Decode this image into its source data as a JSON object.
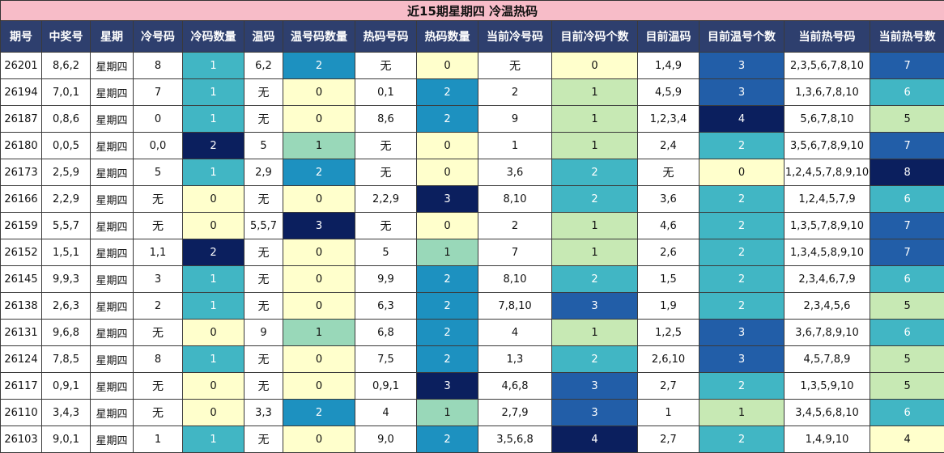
{
  "title": "近15期星期四 冷温热码",
  "headers": [
    "期号",
    "中奖号",
    "星期",
    "冷号码",
    "冷码数量",
    "温码",
    "温号码数量",
    "热码号码",
    "热码数量",
    "当前冷号码",
    "目前冷码个数",
    "目前温码",
    "目前温号个数",
    "当前热号码",
    "当前热号数"
  ],
  "colors": {
    "white": "#ffffff",
    "header_bg": "#2e3f6e",
    "title_bg": "#f7bcc8",
    "count_scale": {
      "0": "#ffffcc",
      "1_light": "#c7e9b4",
      "1_teal": "#41b6c4",
      "1_mint": "#99d8b9",
      "2_teal": "#41b6c4",
      "2_blue": "#1d91c0",
      "3": "#225ea8",
      "4": "#0b1f5e"
    }
  },
  "rows": [
    {
      "cells": [
        "26201",
        "8,6,2",
        "星期四",
        "8",
        "1",
        "6,2",
        "2",
        "无",
        "0",
        "无",
        "0",
        "1,4,9",
        "3",
        "2,3,5,6,7,8,10",
        "7"
      ],
      "fills": [
        "#ffffff",
        "#ffffff",
        "#ffffff",
        "#ffffff",
        "#41b6c4",
        "#ffffff",
        "#1d91c0",
        "#ffffff",
        "#ffffcc",
        "#ffffff",
        "#ffffcc",
        "#ffffff",
        "#225ea8",
        "#ffffff",
        "#225ea8"
      ]
    },
    {
      "cells": [
        "26194",
        "7,0,1",
        "星期四",
        "7",
        "1",
        "无",
        "0",
        "0,1",
        "2",
        "2",
        "1",
        "4,5,9",
        "3",
        "1,3,6,7,8,10",
        "6"
      ],
      "fills": [
        "#ffffff",
        "#ffffff",
        "#ffffff",
        "#ffffff",
        "#41b6c4",
        "#ffffff",
        "#ffffcc",
        "#ffffff",
        "#1d91c0",
        "#ffffff",
        "#c7e9b4",
        "#ffffff",
        "#225ea8",
        "#ffffff",
        "#41b6c4"
      ]
    },
    {
      "cells": [
        "26187",
        "0,8,6",
        "星期四",
        "0",
        "1",
        "无",
        "0",
        "8,6",
        "2",
        "9",
        "1",
        "1,2,3,4",
        "4",
        "5,6,7,8,10",
        "5"
      ],
      "fills": [
        "#ffffff",
        "#ffffff",
        "#ffffff",
        "#ffffff",
        "#41b6c4",
        "#ffffff",
        "#ffffcc",
        "#ffffff",
        "#1d91c0",
        "#ffffff",
        "#c7e9b4",
        "#ffffff",
        "#0b1f5e",
        "#ffffff",
        "#c7e9b4"
      ]
    },
    {
      "cells": [
        "26180",
        "0,0,5",
        "星期四",
        "0,0",
        "2",
        "5",
        "1",
        "无",
        "0",
        "1",
        "1",
        "2,4",
        "2",
        "3,5,6,7,8,9,10",
        "7"
      ],
      "fills": [
        "#ffffff",
        "#ffffff",
        "#ffffff",
        "#ffffff",
        "#0b1f5e",
        "#ffffff",
        "#99d8b9",
        "#ffffff",
        "#ffffcc",
        "#ffffff",
        "#c7e9b4",
        "#ffffff",
        "#41b6c4",
        "#ffffff",
        "#225ea8"
      ]
    },
    {
      "cells": [
        "26173",
        "2,5,9",
        "星期四",
        "5",
        "1",
        "2,9",
        "2",
        "无",
        "0",
        "3,6",
        "2",
        "无",
        "0",
        "1,2,4,5,7,8,9,10",
        "8"
      ],
      "fills": [
        "#ffffff",
        "#ffffff",
        "#ffffff",
        "#ffffff",
        "#41b6c4",
        "#ffffff",
        "#1d91c0",
        "#ffffff",
        "#ffffcc",
        "#ffffff",
        "#41b6c4",
        "#ffffff",
        "#ffffcc",
        "#ffffff",
        "#0b1f5e"
      ]
    },
    {
      "cells": [
        "26166",
        "2,2,9",
        "星期四",
        "无",
        "0",
        "无",
        "0",
        "2,2,9",
        "3",
        "8,10",
        "2",
        "3,6",
        "2",
        "1,2,4,5,7,9",
        "6"
      ],
      "fills": [
        "#ffffff",
        "#ffffff",
        "#ffffff",
        "#ffffff",
        "#ffffcc",
        "#ffffff",
        "#ffffcc",
        "#ffffff",
        "#0b1f5e",
        "#ffffff",
        "#41b6c4",
        "#ffffff",
        "#41b6c4",
        "#ffffff",
        "#41b6c4"
      ]
    },
    {
      "cells": [
        "26159",
        "5,5,7",
        "星期四",
        "无",
        "0",
        "5,5,7",
        "3",
        "无",
        "0",
        "2",
        "1",
        "4,6",
        "2",
        "1,3,5,7,8,9,10",
        "7"
      ],
      "fills": [
        "#ffffff",
        "#ffffff",
        "#ffffff",
        "#ffffff",
        "#ffffcc",
        "#ffffff",
        "#0b1f5e",
        "#ffffff",
        "#ffffcc",
        "#ffffff",
        "#c7e9b4",
        "#ffffff",
        "#41b6c4",
        "#ffffff",
        "#225ea8"
      ]
    },
    {
      "cells": [
        "26152",
        "1,5,1",
        "星期四",
        "1,1",
        "2",
        "无",
        "0",
        "5",
        "1",
        "7",
        "1",
        "2,6",
        "2",
        "1,3,4,5,8,9,10",
        "7"
      ],
      "fills": [
        "#ffffff",
        "#ffffff",
        "#ffffff",
        "#ffffff",
        "#0b1f5e",
        "#ffffff",
        "#ffffcc",
        "#ffffff",
        "#99d8b9",
        "#ffffff",
        "#c7e9b4",
        "#ffffff",
        "#41b6c4",
        "#ffffff",
        "#225ea8"
      ]
    },
    {
      "cells": [
        "26145",
        "9,9,3",
        "星期四",
        "3",
        "1",
        "无",
        "0",
        "9,9",
        "2",
        "8,10",
        "2",
        "1,5",
        "2",
        "2,3,4,6,7,9",
        "6"
      ],
      "fills": [
        "#ffffff",
        "#ffffff",
        "#ffffff",
        "#ffffff",
        "#41b6c4",
        "#ffffff",
        "#ffffcc",
        "#ffffff",
        "#1d91c0",
        "#ffffff",
        "#41b6c4",
        "#ffffff",
        "#41b6c4",
        "#ffffff",
        "#41b6c4"
      ]
    },
    {
      "cells": [
        "26138",
        "2,6,3",
        "星期四",
        "2",
        "1",
        "无",
        "0",
        "6,3",
        "2",
        "7,8,10",
        "3",
        "1,9",
        "2",
        "2,3,4,5,6",
        "5"
      ],
      "fills": [
        "#ffffff",
        "#ffffff",
        "#ffffff",
        "#ffffff",
        "#41b6c4",
        "#ffffff",
        "#ffffcc",
        "#ffffff",
        "#1d91c0",
        "#ffffff",
        "#225ea8",
        "#ffffff",
        "#41b6c4",
        "#ffffff",
        "#c7e9b4"
      ]
    },
    {
      "cells": [
        "26131",
        "9,6,8",
        "星期四",
        "无",
        "0",
        "9",
        "1",
        "6,8",
        "2",
        "4",
        "1",
        "1,2,5",
        "3",
        "3,6,7,8,9,10",
        "6"
      ],
      "fills": [
        "#ffffff",
        "#ffffff",
        "#ffffff",
        "#ffffff",
        "#ffffcc",
        "#ffffff",
        "#99d8b9",
        "#ffffff",
        "#1d91c0",
        "#ffffff",
        "#c7e9b4",
        "#ffffff",
        "#225ea8",
        "#ffffff",
        "#41b6c4"
      ]
    },
    {
      "cells": [
        "26124",
        "7,8,5",
        "星期四",
        "8",
        "1",
        "无",
        "0",
        "7,5",
        "2",
        "1,3",
        "2",
        "2,6,10",
        "3",
        "4,5,7,8,9",
        "5"
      ],
      "fills": [
        "#ffffff",
        "#ffffff",
        "#ffffff",
        "#ffffff",
        "#41b6c4",
        "#ffffff",
        "#ffffcc",
        "#ffffff",
        "#1d91c0",
        "#ffffff",
        "#41b6c4",
        "#ffffff",
        "#225ea8",
        "#ffffff",
        "#c7e9b4"
      ]
    },
    {
      "cells": [
        "26117",
        "0,9,1",
        "星期四",
        "无",
        "0",
        "无",
        "0",
        "0,9,1",
        "3",
        "4,6,8",
        "3",
        "2,7",
        "2",
        "1,3,5,9,10",
        "5"
      ],
      "fills": [
        "#ffffff",
        "#ffffff",
        "#ffffff",
        "#ffffff",
        "#ffffcc",
        "#ffffff",
        "#ffffcc",
        "#ffffff",
        "#0b1f5e",
        "#ffffff",
        "#225ea8",
        "#ffffff",
        "#41b6c4",
        "#ffffff",
        "#c7e9b4"
      ]
    },
    {
      "cells": [
        "26110",
        "3,4,3",
        "星期四",
        "无",
        "0",
        "3,3",
        "2",
        "4",
        "1",
        "2,7,9",
        "3",
        "1",
        "1",
        "3,4,5,6,8,10",
        "6"
      ],
      "fills": [
        "#ffffff",
        "#ffffff",
        "#ffffff",
        "#ffffff",
        "#ffffcc",
        "#ffffff",
        "#1d91c0",
        "#ffffff",
        "#99d8b9",
        "#ffffff",
        "#225ea8",
        "#ffffff",
        "#c7e9b4",
        "#ffffff",
        "#41b6c4"
      ]
    },
    {
      "cells": [
        "26103",
        "9,0,1",
        "星期四",
        "1",
        "1",
        "无",
        "0",
        "9,0",
        "2",
        "3,5,6,8",
        "4",
        "2,7",
        "2",
        "1,4,9,10",
        "4"
      ],
      "fills": [
        "#ffffff",
        "#ffffff",
        "#ffffff",
        "#ffffff",
        "#41b6c4",
        "#ffffff",
        "#ffffcc",
        "#ffffff",
        "#1d91c0",
        "#ffffff",
        "#0b1f5e",
        "#ffffff",
        "#41b6c4",
        "#ffffff",
        "#ffffcc"
      ]
    }
  ]
}
